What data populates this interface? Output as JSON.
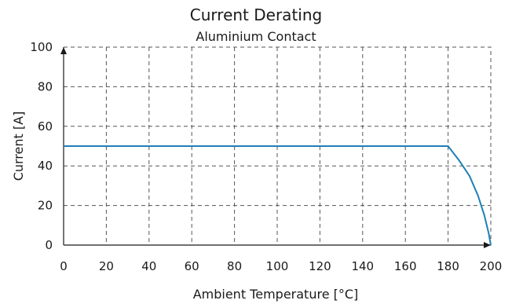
{
  "chart_data": {
    "type": "line",
    "title": "Current Derating",
    "subtitle": "Aluminium Contact",
    "xlabel": "Ambient Temperature [°C]",
    "ylabel": "Current [A]",
    "xlim": [
      0,
      200
    ],
    "ylim": [
      0,
      100
    ],
    "xticks": [
      0,
      20,
      40,
      60,
      80,
      100,
      120,
      140,
      160,
      180,
      200
    ],
    "yticks": [
      0,
      20,
      40,
      60,
      80,
      100
    ],
    "grid": true,
    "series": [
      {
        "color": "#1f7fb4",
        "x": [
          0,
          180,
          185,
          190,
          194,
          197,
          199,
          200
        ],
        "y": [
          50,
          50,
          43,
          35,
          25,
          15,
          6,
          0
        ]
      }
    ]
  }
}
